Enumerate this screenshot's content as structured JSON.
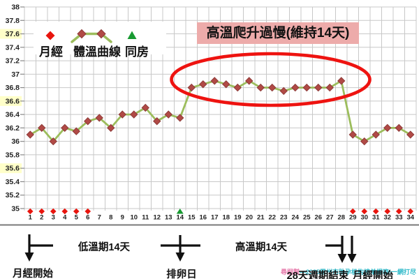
{
  "chart_data": {
    "type": "line",
    "x": [
      1,
      2,
      3,
      4,
      5,
      6,
      7,
      8,
      9,
      10,
      11,
      12,
      13,
      14,
      15,
      16,
      17,
      18,
      19,
      20,
      21,
      22,
      23,
      24,
      25,
      26,
      27,
      28,
      29,
      30,
      31,
      32,
      33,
      34
    ],
    "series": [
      {
        "name": "體溫曲線",
        "values": [
          36.1,
          36.2,
          36.0,
          36.2,
          36.15,
          36.3,
          36.35,
          36.2,
          36.4,
          36.4,
          36.5,
          36.3,
          36.4,
          36.35,
          36.8,
          36.85,
          36.9,
          36.85,
          36.8,
          36.9,
          36.8,
          36.8,
          36.75,
          36.8,
          36.8,
          36.8,
          36.8,
          36.9,
          36.1,
          36.0,
          36.1,
          36.2,
          36.2,
          36.1
        ]
      }
    ],
    "ylabel": "",
    "xlabel": "",
    "ylim": [
      35,
      38
    ],
    "yticks": [
      "38",
      "37.8",
      "37.6",
      "37.4",
      "37.2",
      "37",
      "36.8",
      "36.6",
      "36.4",
      "36.2",
      "36",
      "35.8",
      "35.6",
      "35.4",
      "35.2",
      "35"
    ],
    "highlighted_yticks": [
      "37.6",
      "36.6",
      "35.6"
    ],
    "grid": "on",
    "legend": [
      "月經",
      "體溫曲線",
      "同房"
    ],
    "legend_position": "top-left",
    "annotation": "高溫爬升過慢(維持14天)",
    "circled_days": [
      15,
      28
    ],
    "menses_days": [
      1,
      2,
      3,
      4,
      5,
      6,
      29,
      30,
      31,
      32,
      33,
      34
    ],
    "intercourse_days": [
      14
    ]
  },
  "footer": {
    "menses_start_left": "月經開始",
    "low_phase": "低溫期14天",
    "ovulation": "排卵日",
    "high_phase": "高溫期14天",
    "cycle_end": "28天週期結束",
    "menses_start_right": "月經開始"
  },
  "watermark": {
    "part1": "尋嗣幫",
    "part2": "—2025常州市助孕机构榜单揭晓!一網打尽"
  },
  "colors": {
    "curve_line": "#9cbd5c",
    "curve_marker": "#b14a46",
    "curve_marker_edge": "#8e3b39",
    "menses_marker": "#e8150e",
    "intercourse_marker": "#189a31",
    "ellipse": "#ee1310",
    "title_bg": "#edabaa",
    "grid": "#c8c8c8",
    "highlight": "#ffffc9",
    "axis_text": "#222222",
    "separator": "#7a7a7a",
    "arrow": "#111111",
    "watermark_pink": "#e77fae",
    "watermark_teal": "#2fb9c9"
  }
}
